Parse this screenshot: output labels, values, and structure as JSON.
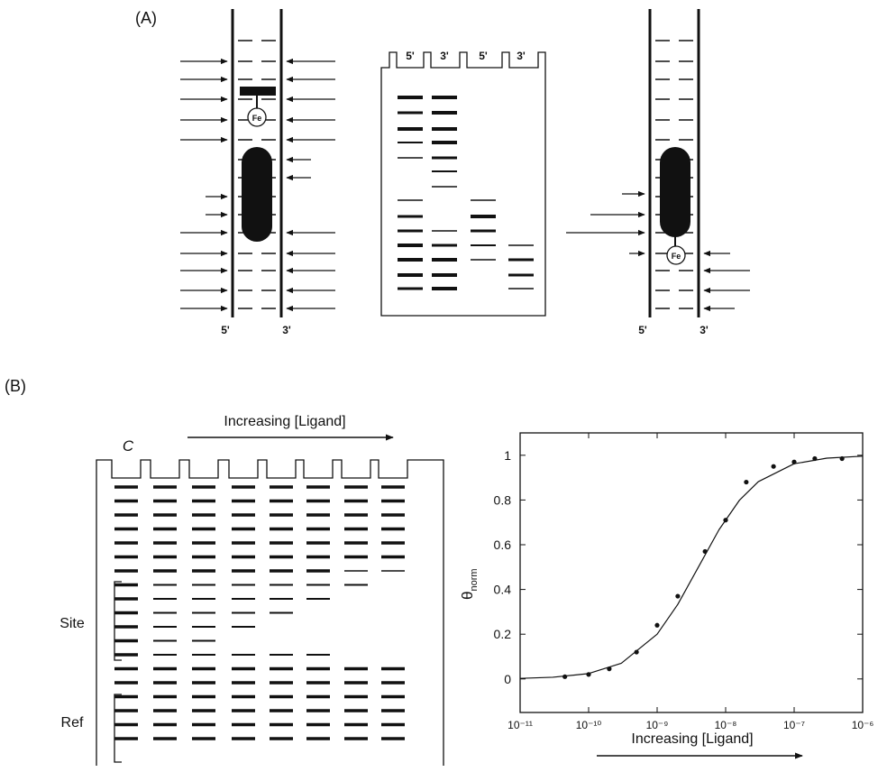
{
  "panel_a": {
    "label": "(A)",
    "left_strand": {
      "fe": "Fe",
      "five": "5'",
      "three": "3'"
    },
    "gel": {
      "lanes": [
        "5'",
        "3'",
        "5'",
        "3'"
      ]
    },
    "right_strand": {
      "fe": "Fe",
      "five": "5'",
      "three": "3'"
    }
  },
  "panel_b": {
    "label": "(B)",
    "gel": {
      "control": "C",
      "arrow_label": "Increasing [Ligand]",
      "site": "Site",
      "ref": "Ref"
    }
  },
  "chart_data": {
    "type": "scatter",
    "y_label": "θ",
    "y_label_sub": "norm",
    "x_label": "Increasing [Ligand]",
    "xscale": "log",
    "xlim": [
      1e-11,
      1e-06
    ],
    "xticks": [
      {
        "value": 1e-11,
        "label": "10⁻¹¹"
      },
      {
        "value": 1e-10,
        "label": "10⁻¹⁰"
      },
      {
        "value": 1e-09,
        "label": "10⁻⁹"
      },
      {
        "value": 1e-08,
        "label": "10⁻⁸"
      },
      {
        "value": 1e-07,
        "label": "10⁻⁷"
      },
      {
        "value": 1e-06,
        "label": "10⁻⁶"
      }
    ],
    "ylim": [
      -0.15,
      1.1
    ],
    "yticks": [
      0,
      0.2,
      0.4,
      0.6,
      0.8,
      1
    ],
    "series": [
      {
        "type": "scatter",
        "color": "#111111",
        "x": [
          4.5e-11,
          1e-10,
          2e-10,
          5e-10,
          1e-09,
          2e-09,
          5e-09,
          1e-08,
          2e-08,
          5e-08,
          1e-07,
          2e-07,
          5e-07
        ],
        "values": [
          0.01,
          0.02,
          0.045,
          0.12,
          0.24,
          0.37,
          0.57,
          0.71,
          0.88,
          0.95,
          0.97,
          0.985,
          0.985
        ]
      },
      {
        "type": "line",
        "color": "#111111",
        "x": [
          1e-11,
          3e-11,
          1e-10,
          3e-10,
          1e-09,
          2e-09,
          4e-09,
          8e-09,
          1.6e-08,
          3e-08,
          1e-07,
          3e-07,
          1e-06
        ],
        "values": [
          0.0025,
          0.0074,
          0.024,
          0.07,
          0.2,
          0.333,
          0.5,
          0.667,
          0.8,
          0.882,
          0.962,
          0.987,
          0.996
        ]
      }
    ]
  }
}
